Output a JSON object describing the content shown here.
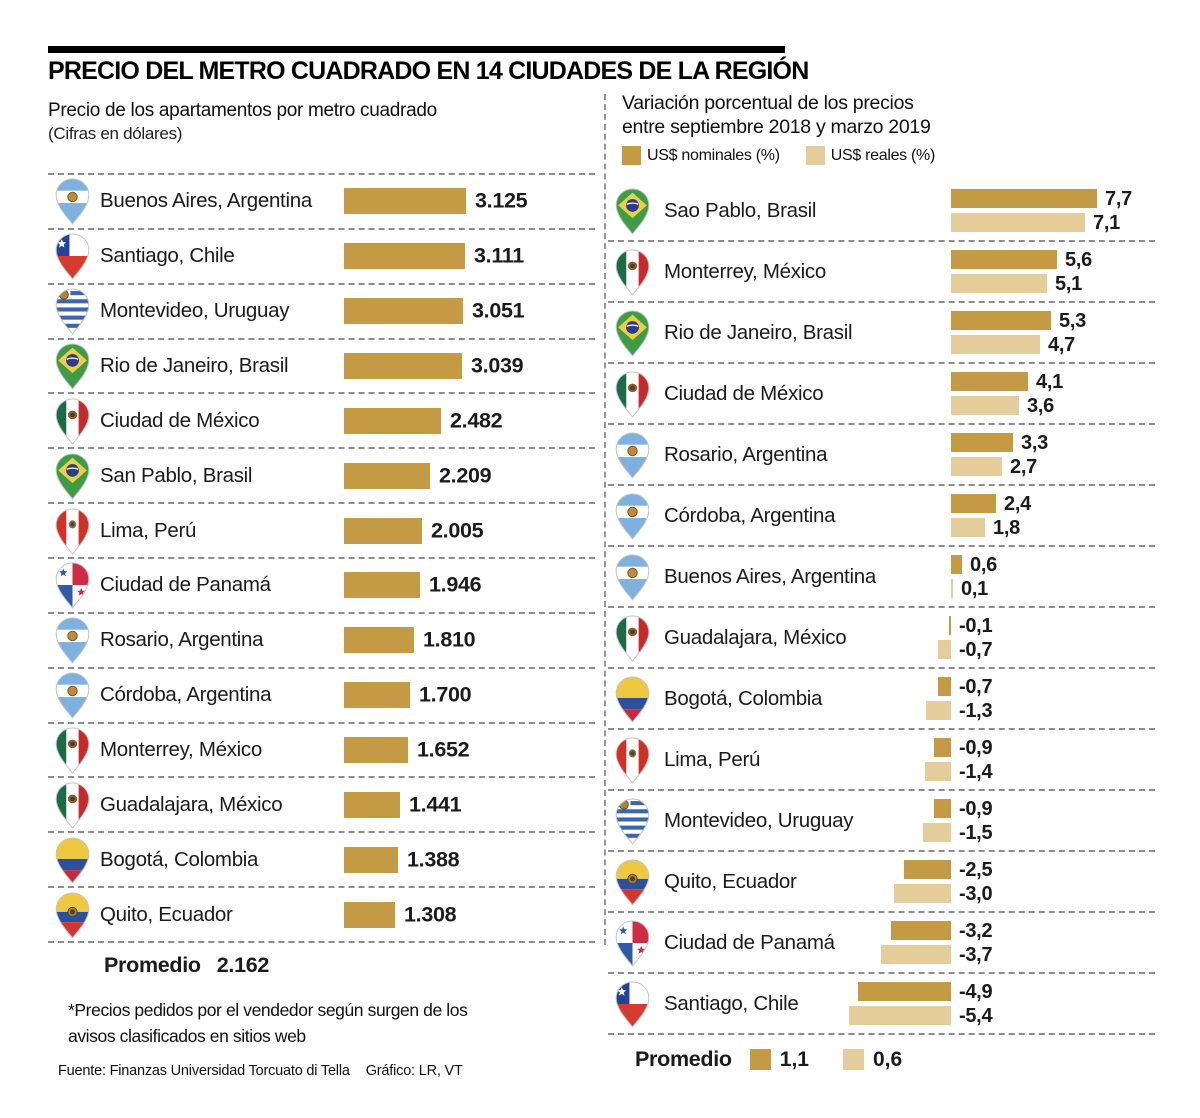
{
  "header": {
    "title": "PRECIO DEL METRO CUADRADO EN 14 CIUDADES DE LA REGIÓN"
  },
  "colors": {
    "bar_nominal": "#C59A45",
    "bar_real": "#E5CC9B",
    "dash": "#8d8d8d",
    "title_rule": "#000000"
  },
  "left_panel": {
    "footnote": "*Precios pedidos por el vendedor según surgen de los avisos clasificados en sitios web",
    "source": "Fuente: Finanzas Universidad Torcuato di Tella",
    "credit": "Gráfico: LR, VT"
  },
  "chart_data": [
    {
      "type": "bar",
      "orientation": "horizontal",
      "title": "Precio de los apartamentos por metro cuadrado",
      "subtitle": "(Cifras en dólares)",
      "xlim": [
        0,
        3200
      ],
      "grid": false,
      "categories": [
        "Buenos Aires, Argentina",
        "Santiago, Chile",
        "Montevideo, Uruguay",
        "Rio de Janeiro, Brasil",
        "Ciudad de México",
        "San Pablo, Brasil",
        "Lima, Perú",
        "Ciudad de Panamá",
        "Rosario, Argentina",
        "Córdoba, Argentina",
        "Monterrey, México",
        "Guadalajara, México",
        "Bogotá, Colombia",
        "Quito, Ecuador"
      ],
      "values": [
        3125,
        3111,
        3051,
        3039,
        2482,
        2209,
        2005,
        1946,
        1810,
        1700,
        1652,
        1441,
        1388,
        1308
      ],
      "value_labels": [
        "3.125",
        "3.111",
        "3.051",
        "3.039",
        "2.482",
        "2.209",
        "2.005",
        "1.946",
        "1.810",
        "1.700",
        "1.652",
        "1.441",
        "1.388",
        "1.308"
      ],
      "flags": [
        "argentina",
        "chile",
        "uruguay",
        "brazil",
        "mexico",
        "brazil",
        "peru",
        "panama",
        "argentina",
        "argentina",
        "mexico",
        "mexico",
        "colombia",
        "ecuador"
      ],
      "average_label": "Promedio",
      "average_display": "2.162",
      "average_value": 2162
    },
    {
      "type": "bar",
      "orientation": "horizontal",
      "title_line1": "Variación porcentual de los precios",
      "title_line2": "entre septiembre 2018 y marzo 2019",
      "xlim": [
        -5.5,
        8
      ],
      "grid": false,
      "legend_position": "top",
      "categories": [
        "Sao Pablo, Brasil",
        "Monterrey, México",
        "Rio de Janeiro, Brasil",
        "Ciudad de México",
        "Rosario, Argentina",
        "Córdoba, Argentina",
        "Buenos Aires, Argentina",
        "Guadalajara, México",
        "Bogotá, Colombia",
        "Lima, Perú",
        "Montevideo, Uruguay",
        "Quito, Ecuador",
        "Ciudad de Panamá",
        "Santiago, Chile"
      ],
      "flags": [
        "brazil",
        "mexico",
        "brazil",
        "mexico",
        "argentina",
        "argentina",
        "argentina",
        "mexico",
        "colombia",
        "peru",
        "uruguay",
        "ecuador",
        "panama",
        "chile"
      ],
      "series": [
        {
          "name": "US$ nominales (%)",
          "color": "#C59A45",
          "values": [
            7.7,
            5.6,
            5.3,
            4.1,
            3.3,
            2.4,
            0.6,
            -0.1,
            -0.7,
            -0.9,
            -0.9,
            -2.5,
            -3.2,
            -4.9
          ],
          "labels": [
            "7,7",
            "5,6",
            "5,3",
            "4,1",
            "3,3",
            "2,4",
            "0,6",
            "-0,1",
            "-0,7",
            "-0,9",
            "-0,9",
            "-2,5",
            "-3,2",
            "-4,9"
          ]
        },
        {
          "name": "US$ reales (%)",
          "color": "#E5CC9B",
          "values": [
            7.1,
            5.1,
            4.7,
            3.6,
            2.7,
            1.8,
            0.1,
            -0.7,
            -1.3,
            -1.4,
            -1.5,
            -3.0,
            -3.7,
            -5.4
          ],
          "labels": [
            "7,1",
            "5,1",
            "4,7",
            "3,6",
            "2,7",
            "1,8",
            "0,1",
            "-0,7",
            "-1,3",
            "-1,4",
            "-1,5",
            "-3,0",
            "-3,7",
            "-5,4"
          ]
        }
      ],
      "average_label": "Promedio",
      "average_nominal_display": "1,1",
      "average_real_display": "0,6",
      "average_nominal": 1.1,
      "average_real": 0.6
    }
  ]
}
